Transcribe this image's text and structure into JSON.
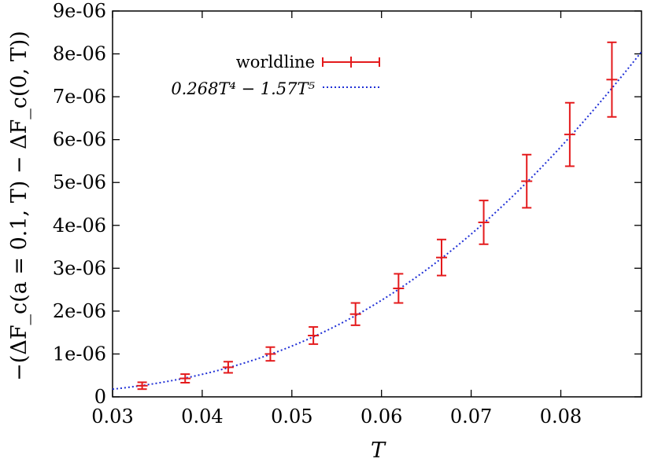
{
  "chart_data": {
    "type": "scatter",
    "xlabel": "T",
    "ylabel": "−(ΔF_c(a = 0.1, T) − ΔF_c(0, T))",
    "xlim": [
      0.03,
      0.089
    ],
    "ylim": [
      0,
      9e-06
    ],
    "xticks": [
      0.03,
      0.04,
      0.05,
      0.06,
      0.07,
      0.08
    ],
    "xtick_labels": [
      "0.03",
      "0.04",
      "0.05",
      "0.06",
      "0.07",
      "0.08"
    ],
    "yticks": [
      0,
      1e-06,
      2e-06,
      3e-06,
      4e-06,
      5e-06,
      6e-06,
      7e-06,
      8e-06,
      9e-06
    ],
    "ytick_labels": [
      "0",
      "1e-06",
      "2e-06",
      "3e-06",
      "4e-06",
      "5e-06",
      "6e-06",
      "7e-06",
      "8e-06",
      "9e-06"
    ],
    "grid": false,
    "legend_position": "top-left",
    "series": [
      {
        "name": "worldline",
        "style": "errorbar",
        "color": "#e41a1c",
        "points": [
          {
            "x": 0.0333,
            "y": 2.6e-07,
            "err": 8e-08
          },
          {
            "x": 0.0381,
            "y": 4.3e-07,
            "err": 1e-07
          },
          {
            "x": 0.0429,
            "y": 6.9e-07,
            "err": 1.3e-07
          },
          {
            "x": 0.0476,
            "y": 1e-06,
            "err": 1.6e-07
          },
          {
            "x": 0.0524,
            "y": 1.43e-06,
            "err": 2e-07
          },
          {
            "x": 0.0571,
            "y": 1.93e-06,
            "err": 2.6e-07
          },
          {
            "x": 0.0619,
            "y": 2.53e-06,
            "err": 3.4e-07
          },
          {
            "x": 0.0667,
            "y": 3.25e-06,
            "err": 4.2e-07
          },
          {
            "x": 0.0714,
            "y": 4.07e-06,
            "err": 5.1e-07
          },
          {
            "x": 0.0762,
            "y": 5.03e-06,
            "err": 6.2e-07
          },
          {
            "x": 0.081,
            "y": 6.12e-06,
            "err": 7.4e-07
          },
          {
            "x": 0.0857,
            "y": 7.4e-06,
            "err": 8.7e-07
          }
        ]
      },
      {
        "name": "0.268T⁴ − 1.57T⁵",
        "style": "dotted-line",
        "color": "#1f2fd6",
        "function": {
          "a4": 0.268,
          "a5": -1.57
        },
        "x_range": [
          0.03,
          0.089
        ]
      }
    ]
  }
}
